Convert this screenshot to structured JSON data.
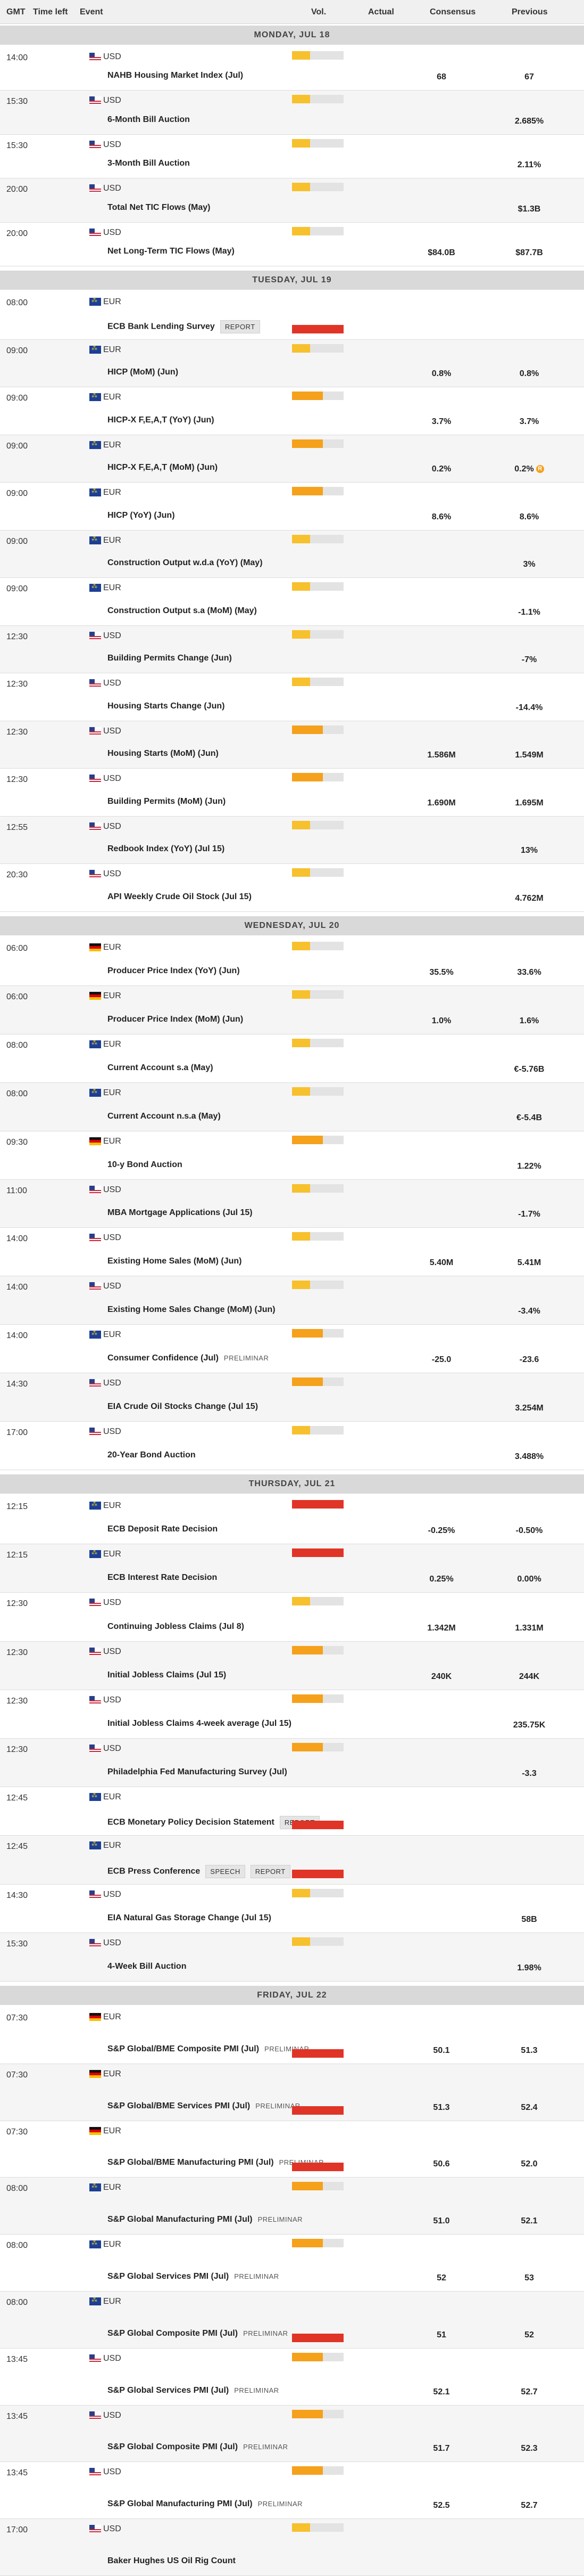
{
  "header": {
    "gmt": "GMT",
    "time_left": "Time left",
    "event": "Event",
    "vol": "Vol.",
    "actual": "Actual",
    "consensus": "Consensus",
    "previous": "Previous"
  },
  "colors": {
    "vol_low": "#f7c02d",
    "vol_medium": "#f5a11c",
    "vol_high": "#e03426",
    "day_bar": "#d9d9d9"
  },
  "days": [
    {
      "label": "MONDAY, JUL 18",
      "events": [
        {
          "time": "14:00",
          "flag": "us",
          "currency": "USD",
          "name": "NAHB Housing Market Index (Jul)",
          "vol": "low",
          "consensus": "68",
          "previous": "67"
        },
        {
          "time": "15:30",
          "flag": "us",
          "currency": "USD",
          "name": "6-Month Bill Auction",
          "vol": "low",
          "consensus": "",
          "previous": "2.685%"
        },
        {
          "time": "15:30",
          "flag": "us",
          "currency": "USD",
          "name": "3-Month Bill Auction",
          "vol": "low",
          "consensus": "",
          "previous": "2.11%"
        },
        {
          "time": "20:00",
          "flag": "us",
          "currency": "USD",
          "name": "Total Net TIC Flows (May)",
          "vol": "low",
          "consensus": "",
          "previous": "$1.3B"
        },
        {
          "time": "20:00",
          "flag": "us",
          "currency": "USD",
          "name": "Net Long-Term TIC Flows (May)",
          "vol": "low",
          "consensus": "$84.0B",
          "previous": "$87.7B"
        }
      ]
    },
    {
      "label": "TUESDAY, JUL 19",
      "events": [
        {
          "time": "08:00",
          "flag": "eu",
          "currency": "EUR",
          "name": "ECB Bank Lending Survey",
          "badge": "REPORT",
          "vol": "high",
          "consensus": "",
          "previous": ""
        },
        {
          "time": "09:00",
          "flag": "eu",
          "currency": "EUR",
          "name": "HICP (MoM) (Jun)",
          "vol": "low",
          "consensus": "0.8%",
          "previous": "0.8%"
        },
        {
          "time": "09:00",
          "flag": "eu",
          "currency": "EUR",
          "name": "HICP-X F,E,A,T (YoY) (Jun)",
          "vol": "med",
          "consensus": "3.7%",
          "previous": "3.7%"
        },
        {
          "time": "09:00",
          "flag": "eu",
          "currency": "EUR",
          "name": "HICP-X F,E,A,T (MoM) (Jun)",
          "vol": "med",
          "consensus": "0.2%",
          "previous": "0.2%",
          "revised": "R"
        },
        {
          "time": "09:00",
          "flag": "eu",
          "currency": "EUR",
          "name": "HICP (YoY) (Jun)",
          "vol": "med",
          "consensus": "8.6%",
          "previous": "8.6%"
        },
        {
          "time": "09:00",
          "flag": "eu",
          "currency": "EUR",
          "name": "Construction Output w.d.a (YoY) (May)",
          "vol": "low",
          "consensus": "",
          "previous": "3%"
        },
        {
          "time": "09:00",
          "flag": "eu",
          "currency": "EUR",
          "name": "Construction Output s.a (MoM) (May)",
          "vol": "low",
          "consensus": "",
          "previous": "-1.1%"
        },
        {
          "time": "12:30",
          "flag": "us",
          "currency": "USD",
          "name": "Building Permits Change (Jun)",
          "vol": "low",
          "consensus": "",
          "previous": "-7%"
        },
        {
          "time": "12:30",
          "flag": "us",
          "currency": "USD",
          "name": "Housing Starts Change (Jun)",
          "vol": "low",
          "consensus": "",
          "previous": "-14.4%"
        },
        {
          "time": "12:30",
          "flag": "us",
          "currency": "USD",
          "name": "Housing Starts (MoM) (Jun)",
          "vol": "med",
          "consensus": "1.586M",
          "previous": "1.549M"
        },
        {
          "time": "12:30",
          "flag": "us",
          "currency": "USD",
          "name": "Building Permits (MoM) (Jun)",
          "vol": "med",
          "consensus": "1.690M",
          "previous": "1.695M"
        },
        {
          "time": "12:55",
          "flag": "us",
          "currency": "USD",
          "name": "Redbook Index (YoY) (Jul 15)",
          "vol": "low",
          "consensus": "",
          "previous": "13%"
        },
        {
          "time": "20:30",
          "flag": "us",
          "currency": "USD",
          "name": "API Weekly Crude Oil Stock (Jul 15)",
          "vol": "low",
          "consensus": "",
          "previous": "4.762M"
        }
      ]
    },
    {
      "label": "WEDNESDAY, JUL 20",
      "events": [
        {
          "time": "06:00",
          "flag": "de",
          "currency": "EUR",
          "name": "Producer Price Index (YoY) (Jun)",
          "vol": "low",
          "consensus": "35.5%",
          "previous": "33.6%"
        },
        {
          "time": "06:00",
          "flag": "de",
          "currency": "EUR",
          "name": "Producer Price Index (MoM) (Jun)",
          "vol": "low",
          "consensus": "1.0%",
          "previous": "1.6%"
        },
        {
          "time": "08:00",
          "flag": "eu",
          "currency": "EUR",
          "name": "Current Account s.a (May)",
          "vol": "low",
          "consensus": "",
          "previous": "€-5.76B"
        },
        {
          "time": "08:00",
          "flag": "eu",
          "currency": "EUR",
          "name": "Current Account n.s.a (May)",
          "vol": "low",
          "consensus": "",
          "previous": "€-5.4B"
        },
        {
          "time": "09:30",
          "flag": "de",
          "currency": "EUR",
          "name": "10-y Bond Auction",
          "vol": "med",
          "consensus": "",
          "previous": "1.22%"
        },
        {
          "time": "11:00",
          "flag": "us",
          "currency": "USD",
          "name": "MBA Mortgage Applications (Jul 15)",
          "vol": "low",
          "consensus": "",
          "previous": "-1.7%"
        },
        {
          "time": "14:00",
          "flag": "us",
          "currency": "USD",
          "name": "Existing Home Sales (MoM) (Jun)",
          "vol": "low",
          "consensus": "5.40M",
          "previous": "5.41M"
        },
        {
          "time": "14:00",
          "flag": "us",
          "currency": "USD",
          "name": "Existing Home Sales Change (MoM) (Jun)",
          "vol": "low",
          "consensus": "",
          "previous": "-3.4%"
        },
        {
          "time": "14:00",
          "flag": "eu",
          "currency": "EUR",
          "name": "Consumer Confidence (Jul)",
          "prelim": "PRELIMINAR",
          "vol": "med",
          "consensus": "-25.0",
          "previous": "-23.6"
        },
        {
          "time": "14:30",
          "flag": "us",
          "currency": "USD",
          "name": "EIA Crude Oil Stocks Change (Jul 15)",
          "vol": "med",
          "consensus": "",
          "previous": "3.254M"
        },
        {
          "time": "17:00",
          "flag": "us",
          "currency": "USD",
          "name": "20-Year Bond Auction",
          "vol": "low",
          "consensus": "",
          "previous": "3.488%"
        }
      ]
    },
    {
      "label": "THURSDAY, JUL 21",
      "events": [
        {
          "time": "12:15",
          "flag": "eu",
          "currency": "EUR",
          "name": "ECB Deposit Rate Decision",
          "vol": "high",
          "consensus": "-0.25%",
          "previous": "-0.50%"
        },
        {
          "time": "12:15",
          "flag": "eu",
          "currency": "EUR",
          "name": "ECB Interest Rate Decision",
          "vol": "high",
          "consensus": "0.25%",
          "previous": "0.00%"
        },
        {
          "time": "12:30",
          "flag": "us",
          "currency": "USD",
          "name": "Continuing Jobless Claims (Jul 8)",
          "vol": "low",
          "consensus": "1.342M",
          "previous": "1.331M"
        },
        {
          "time": "12:30",
          "flag": "us",
          "currency": "USD",
          "name": "Initial Jobless Claims (Jul 15)",
          "vol": "med",
          "consensus": "240K",
          "previous": "244K"
        },
        {
          "time": "12:30",
          "flag": "us",
          "currency": "USD",
          "name": "Initial Jobless Claims 4-week average (Jul 15)",
          "vol": "med",
          "consensus": "",
          "previous": "235.75K"
        },
        {
          "time": "12:30",
          "flag": "us",
          "currency": "USD",
          "name": "Philadelphia Fed Manufacturing Survey (Jul)",
          "vol": "med",
          "consensus": "",
          "previous": "-3.3"
        },
        {
          "time": "12:45",
          "flag": "eu",
          "currency": "EUR",
          "name": "ECB Monetary Policy Decision Statement",
          "badge": "REPORT",
          "vol": "high",
          "consensus": "",
          "previous": ""
        },
        {
          "time": "12:45",
          "flag": "eu",
          "currency": "EUR",
          "name": "ECB Press Conference",
          "badge": "SPEECH",
          "badge2": "REPORT",
          "vol": "high",
          "consensus": "",
          "previous": ""
        },
        {
          "time": "14:30",
          "flag": "us",
          "currency": "USD",
          "name": "EIA Natural Gas Storage Change (Jul 15)",
          "vol": "low",
          "consensus": "",
          "previous": "58B"
        },
        {
          "time": "15:30",
          "flag": "us",
          "currency": "USD",
          "name": "4-Week Bill Auction",
          "vol": "low",
          "consensus": "",
          "previous": "1.98%"
        }
      ]
    },
    {
      "label": "FRIDAY, JUL 22",
      "events": [
        {
          "time": "07:30",
          "flag": "de",
          "currency": "EUR",
          "name": "S&P Global/BME Composite PMI (Jul)",
          "prelim": "PRELIMINAR",
          "vol": "high",
          "consensus": "50.1",
          "previous": "51.3"
        },
        {
          "time": "07:30",
          "flag": "de",
          "currency": "EUR",
          "name": "S&P Global/BME Services PMI (Jul)",
          "prelim": "PRELIMINAR",
          "vol": "high",
          "consensus": "51.3",
          "previous": "52.4"
        },
        {
          "time": "07:30",
          "flag": "de",
          "currency": "EUR",
          "name": "S&P Global/BME Manufacturing PMI (Jul)",
          "prelim": "PRELIMINAR",
          "vol": "high",
          "consensus": "50.6",
          "previous": "52.0"
        },
        {
          "time": "08:00",
          "flag": "eu",
          "currency": "EUR",
          "name": "S&P Global Manufacturing PMI (Jul)",
          "prelim": "PRELIMINAR",
          "vol": "med",
          "consensus": "51.0",
          "previous": "52.1"
        },
        {
          "time": "08:00",
          "flag": "eu",
          "currency": "EUR",
          "name": "S&P Global Services PMI (Jul)",
          "prelim": "PRELIMINAR",
          "vol": "med",
          "consensus": "52",
          "previous": "53"
        },
        {
          "time": "08:00",
          "flag": "eu",
          "currency": "EUR",
          "name": "S&P Global Composite PMI (Jul)",
          "prelim": "PRELIMINAR",
          "vol": "high",
          "consensus": "51",
          "previous": "52"
        },
        {
          "time": "13:45",
          "flag": "us",
          "currency": "USD",
          "name": "S&P Global Services PMI (Jul)",
          "prelim": "PRELIMINAR",
          "vol": "med",
          "consensus": "52.1",
          "previous": "52.7"
        },
        {
          "time": "13:45",
          "flag": "us",
          "currency": "USD",
          "name": "S&P Global Composite PMI (Jul)",
          "prelim": "PRELIMINAR",
          "vol": "med",
          "consensus": "51.7",
          "previous": "52.3"
        },
        {
          "time": "13:45",
          "flag": "us",
          "currency": "USD",
          "name": "S&P Global Manufacturing PMI (Jul)",
          "prelim": "PRELIMINAR",
          "vol": "med",
          "consensus": "52.5",
          "previous": "52.7"
        },
        {
          "time": "17:00",
          "flag": "us",
          "currency": "USD",
          "name": "Baker Hughes US Oil Rig Count",
          "vol": "low",
          "consensus": "",
          "previous": ""
        }
      ]
    }
  ]
}
